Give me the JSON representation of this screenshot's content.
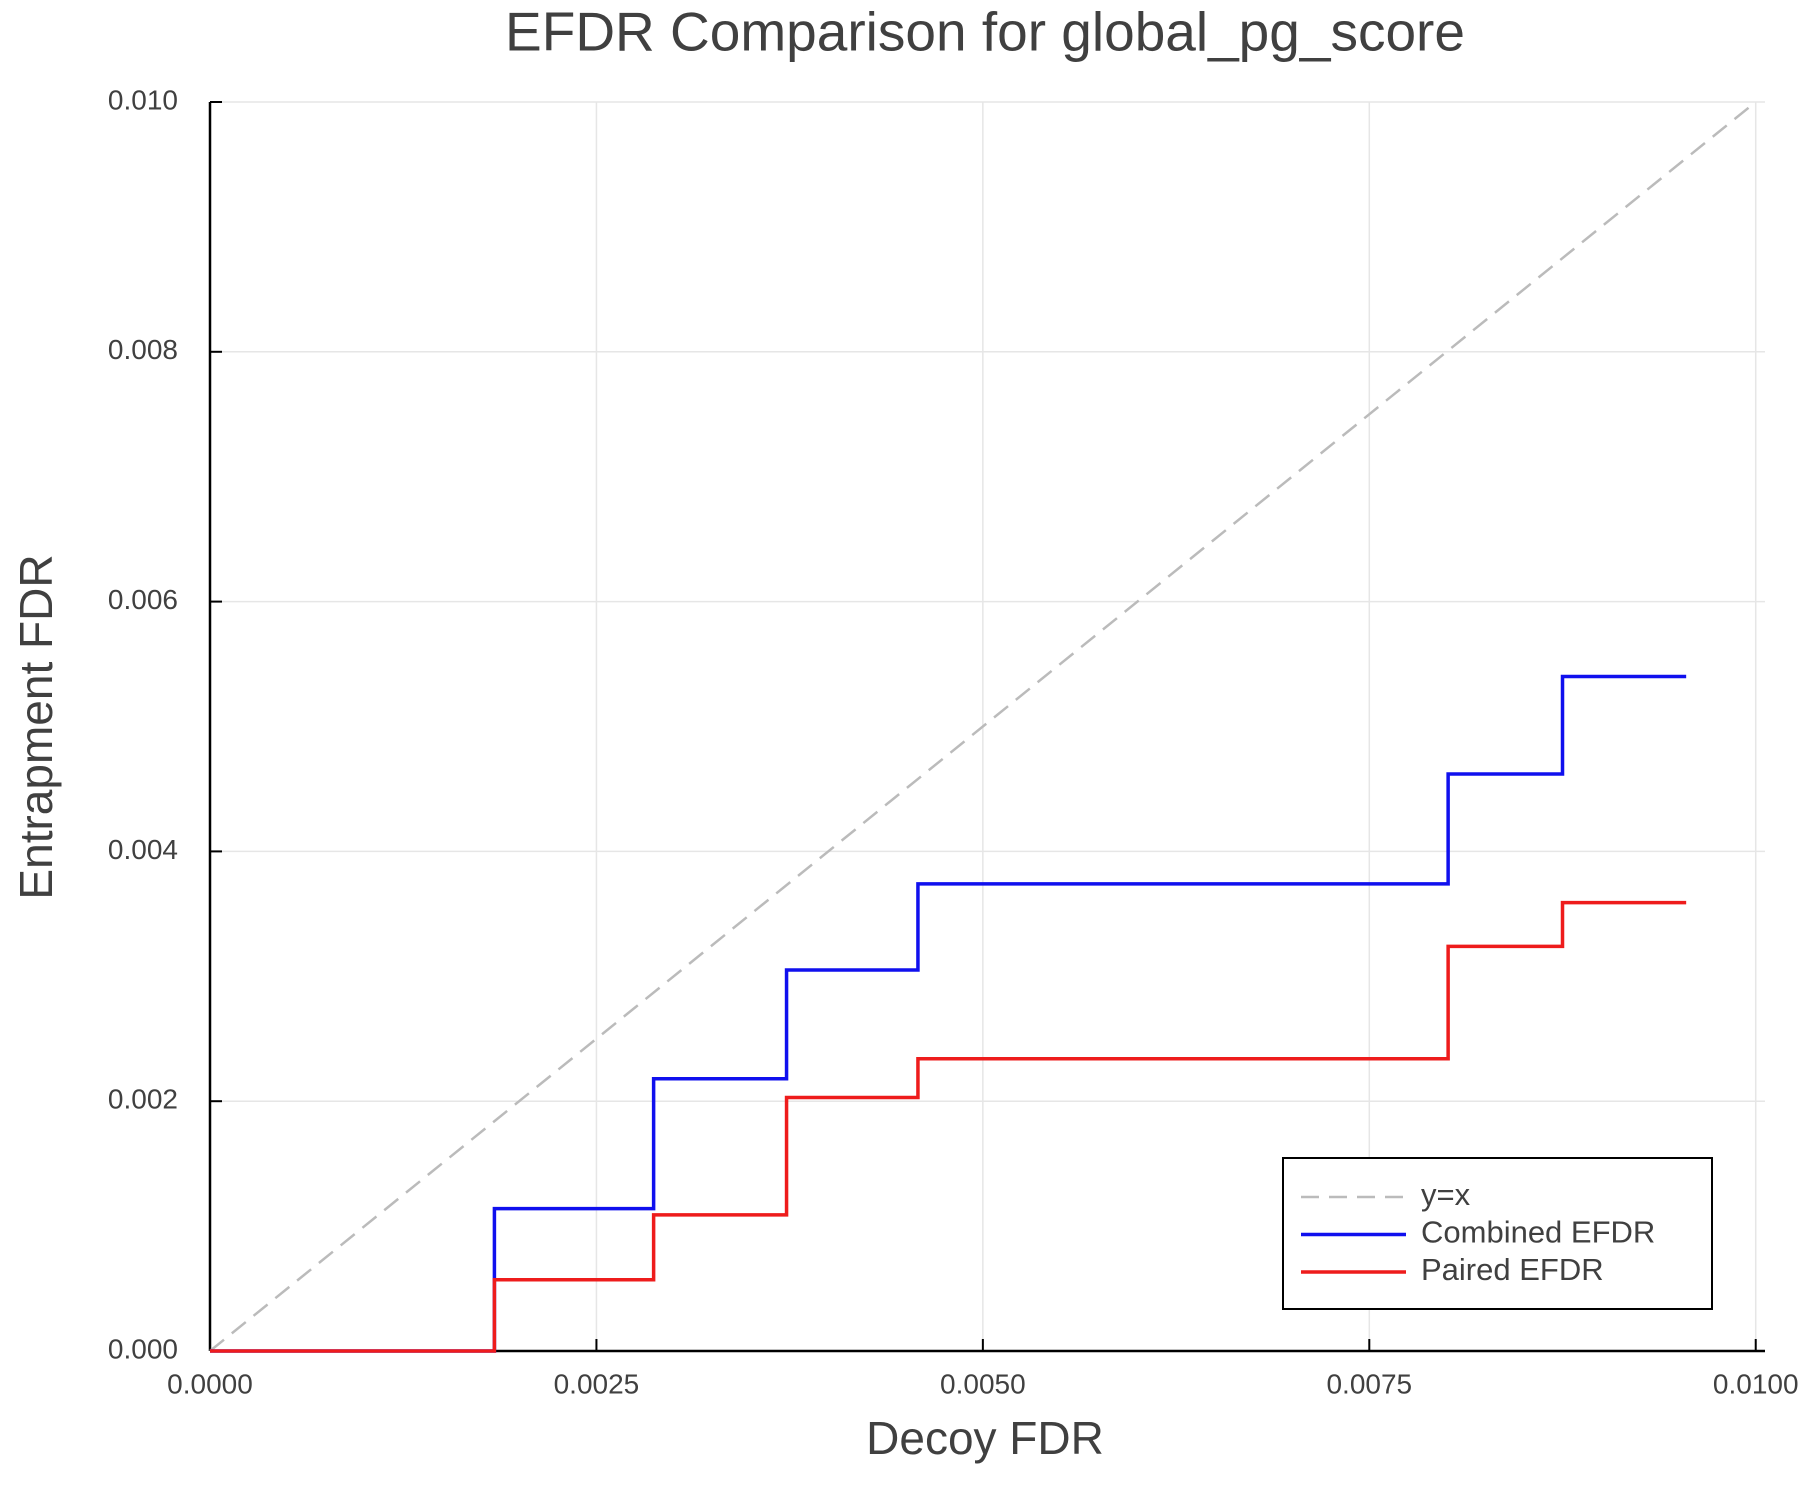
{
  "chart_data": {
    "type": "step",
    "title": "EFDR Comparison for global_pg_score",
    "xlabel": "Decoy FDR",
    "ylabel": "Entrapment FDR",
    "xlim": [
      0,
      0.01006
    ],
    "ylim": [
      0,
      0.01
    ],
    "xticks": [
      {
        "value": 0,
        "label": "0.0000"
      },
      {
        "value": 0.0025,
        "label": "0.0025"
      },
      {
        "value": 0.005,
        "label": "0.0050"
      },
      {
        "value": 0.0075,
        "label": "0.0075"
      },
      {
        "value": 0.01,
        "label": "0.0100"
      }
    ],
    "yticks": [
      {
        "value": 0,
        "label": "0.000"
      },
      {
        "value": 0.002,
        "label": "0.002"
      },
      {
        "value": 0.004,
        "label": "0.004"
      },
      {
        "value": 0.006,
        "label": "0.006"
      },
      {
        "value": 0.008,
        "label": "0.008"
      },
      {
        "value": 0.01,
        "label": "0.010"
      }
    ],
    "grid": true,
    "legend": "lower right",
    "series": [
      {
        "name": "y=x",
        "color": "#bbbbbb",
        "dashed": true,
        "x": [
          0,
          0.01
        ],
        "values": [
          0,
          0.01
        ]
      },
      {
        "name": "Combined EFDR",
        "color": "#1010ee",
        "x": [
          0,
          0.00184,
          0.00287,
          0.00373,
          0.00458,
          0.00801,
          0.00875,
          0.00955
        ],
        "values": [
          0,
          0.00114,
          0.00218,
          0.00305,
          0.00374,
          0.00462,
          0.0054,
          0.0054
        ]
      },
      {
        "name": "Paired EFDR",
        "color": "#ee1c1c",
        "x": [
          0,
          0.00184,
          0.00287,
          0.00373,
          0.00458,
          0.00801,
          0.00875,
          0.00955
        ],
        "values": [
          0,
          0.00057,
          0.00109,
          0.00203,
          0.00234,
          0.00324,
          0.00359,
          0.00359
        ]
      }
    ]
  }
}
